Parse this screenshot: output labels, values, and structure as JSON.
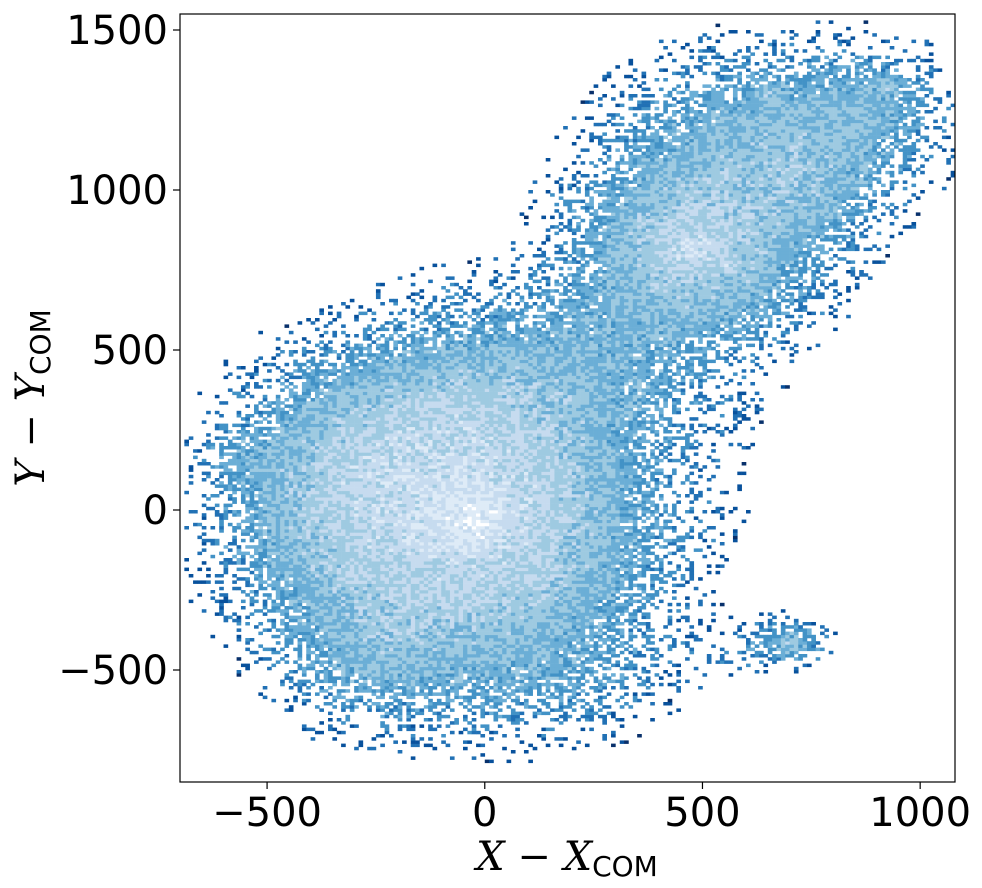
{
  "chart_data": {
    "type": "heatmap",
    "title": "",
    "xlabel": {
      "base": "X − X",
      "sub": "COM"
    },
    "ylabel": {
      "base": "Y − Y",
      "sub": "COM"
    },
    "xlim": [
      -700,
      1080
    ],
    "ylim": [
      -850,
      1550
    ],
    "xticks": [
      {
        "value": -500,
        "label": "−500"
      },
      {
        "value": 0,
        "label": "0"
      },
      {
        "value": 500,
        "label": "500"
      },
      {
        "value": 1000,
        "label": "1000"
      }
    ],
    "yticks": [
      {
        "value": -500,
        "label": "−500"
      },
      {
        "value": 0,
        "label": "0"
      },
      {
        "value": 500,
        "label": "500"
      },
      {
        "value": 1000,
        "label": "1000"
      },
      {
        "value": 1500,
        "label": "1500"
      }
    ],
    "bin_size": 10,
    "colormap": [
      "#08306b",
      "#08519c",
      "#2171b5",
      "#4292c6",
      "#6baed6",
      "#9ecae1",
      "#c6dbef",
      "#deebf7",
      "#ffffff"
    ],
    "grid": false,
    "density_components": [
      {
        "x": -40,
        "y": -40,
        "sigma_x": 230,
        "sigma_y": 260,
        "weight": 1.0
      },
      {
        "x": -30,
        "y": -20,
        "sigma_x": 55,
        "sigma_y": 55,
        "weight": 0.9
      },
      {
        "x": -25,
        "y": -115,
        "sigma_x": 22,
        "sigma_y": 22,
        "weight": 0.5
      },
      {
        "x": -130,
        "y": -125,
        "sigma_x": 18,
        "sigma_y": 18,
        "weight": 0.35
      },
      {
        "x": -150,
        "y": 250,
        "sigma_x": 190,
        "sigma_y": 160,
        "weight": 0.35
      },
      {
        "x": -350,
        "y": 0,
        "sigma_x": 140,
        "sigma_y": 190,
        "weight": 0.3
      },
      {
        "x": -250,
        "y": -450,
        "sigma_x": 120,
        "sigma_y": 120,
        "weight": 0.22
      },
      {
        "x": 200,
        "y": 450,
        "sigma_x": 200,
        "sigma_y": 160,
        "weight": 0.25
      },
      {
        "x": -550,
        "y": 160,
        "sigma_x": 60,
        "sigma_y": 60,
        "weight": 0.12
      },
      {
        "x": 480,
        "y": 820,
        "sigma_x": 150,
        "sigma_y": 170,
        "weight": 0.7
      },
      {
        "x": 480,
        "y": 810,
        "sigma_x": 35,
        "sigma_y": 35,
        "weight": 0.6
      },
      {
        "x": 570,
        "y": 760,
        "sigma_x": 18,
        "sigma_y": 18,
        "weight": 0.3
      },
      {
        "x": 640,
        "y": 1150,
        "sigma_x": 180,
        "sigma_y": 160,
        "weight": 0.35
      },
      {
        "x": 880,
        "y": 1250,
        "sigma_x": 100,
        "sigma_y": 110,
        "weight": 0.25
      },
      {
        "x": 930,
        "y": 1330,
        "sigma_x": 18,
        "sigma_y": 18,
        "weight": 0.25
      },
      {
        "x": 650,
        "y": 1300,
        "sigma_x": 22,
        "sigma_y": 22,
        "weight": 0.25
      },
      {
        "x": 750,
        "y": 1000,
        "sigma_x": 90,
        "sigma_y": 120,
        "weight": 0.2
      },
      {
        "x": 700,
        "y": -410,
        "sigma_x": 55,
        "sigma_y": 40,
        "weight": 0.28
      },
      {
        "x": 700,
        "y": -420,
        "sigma_x": 14,
        "sigma_y": 14,
        "weight": 0.25
      },
      {
        "x": 590,
        "y": -440,
        "sigma_x": 70,
        "sigma_y": 40,
        "weight": 0.08
      },
      {
        "x": 150,
        "y": -500,
        "sigma_x": 160,
        "sigma_y": 120,
        "weight": 0.12
      }
    ]
  }
}
